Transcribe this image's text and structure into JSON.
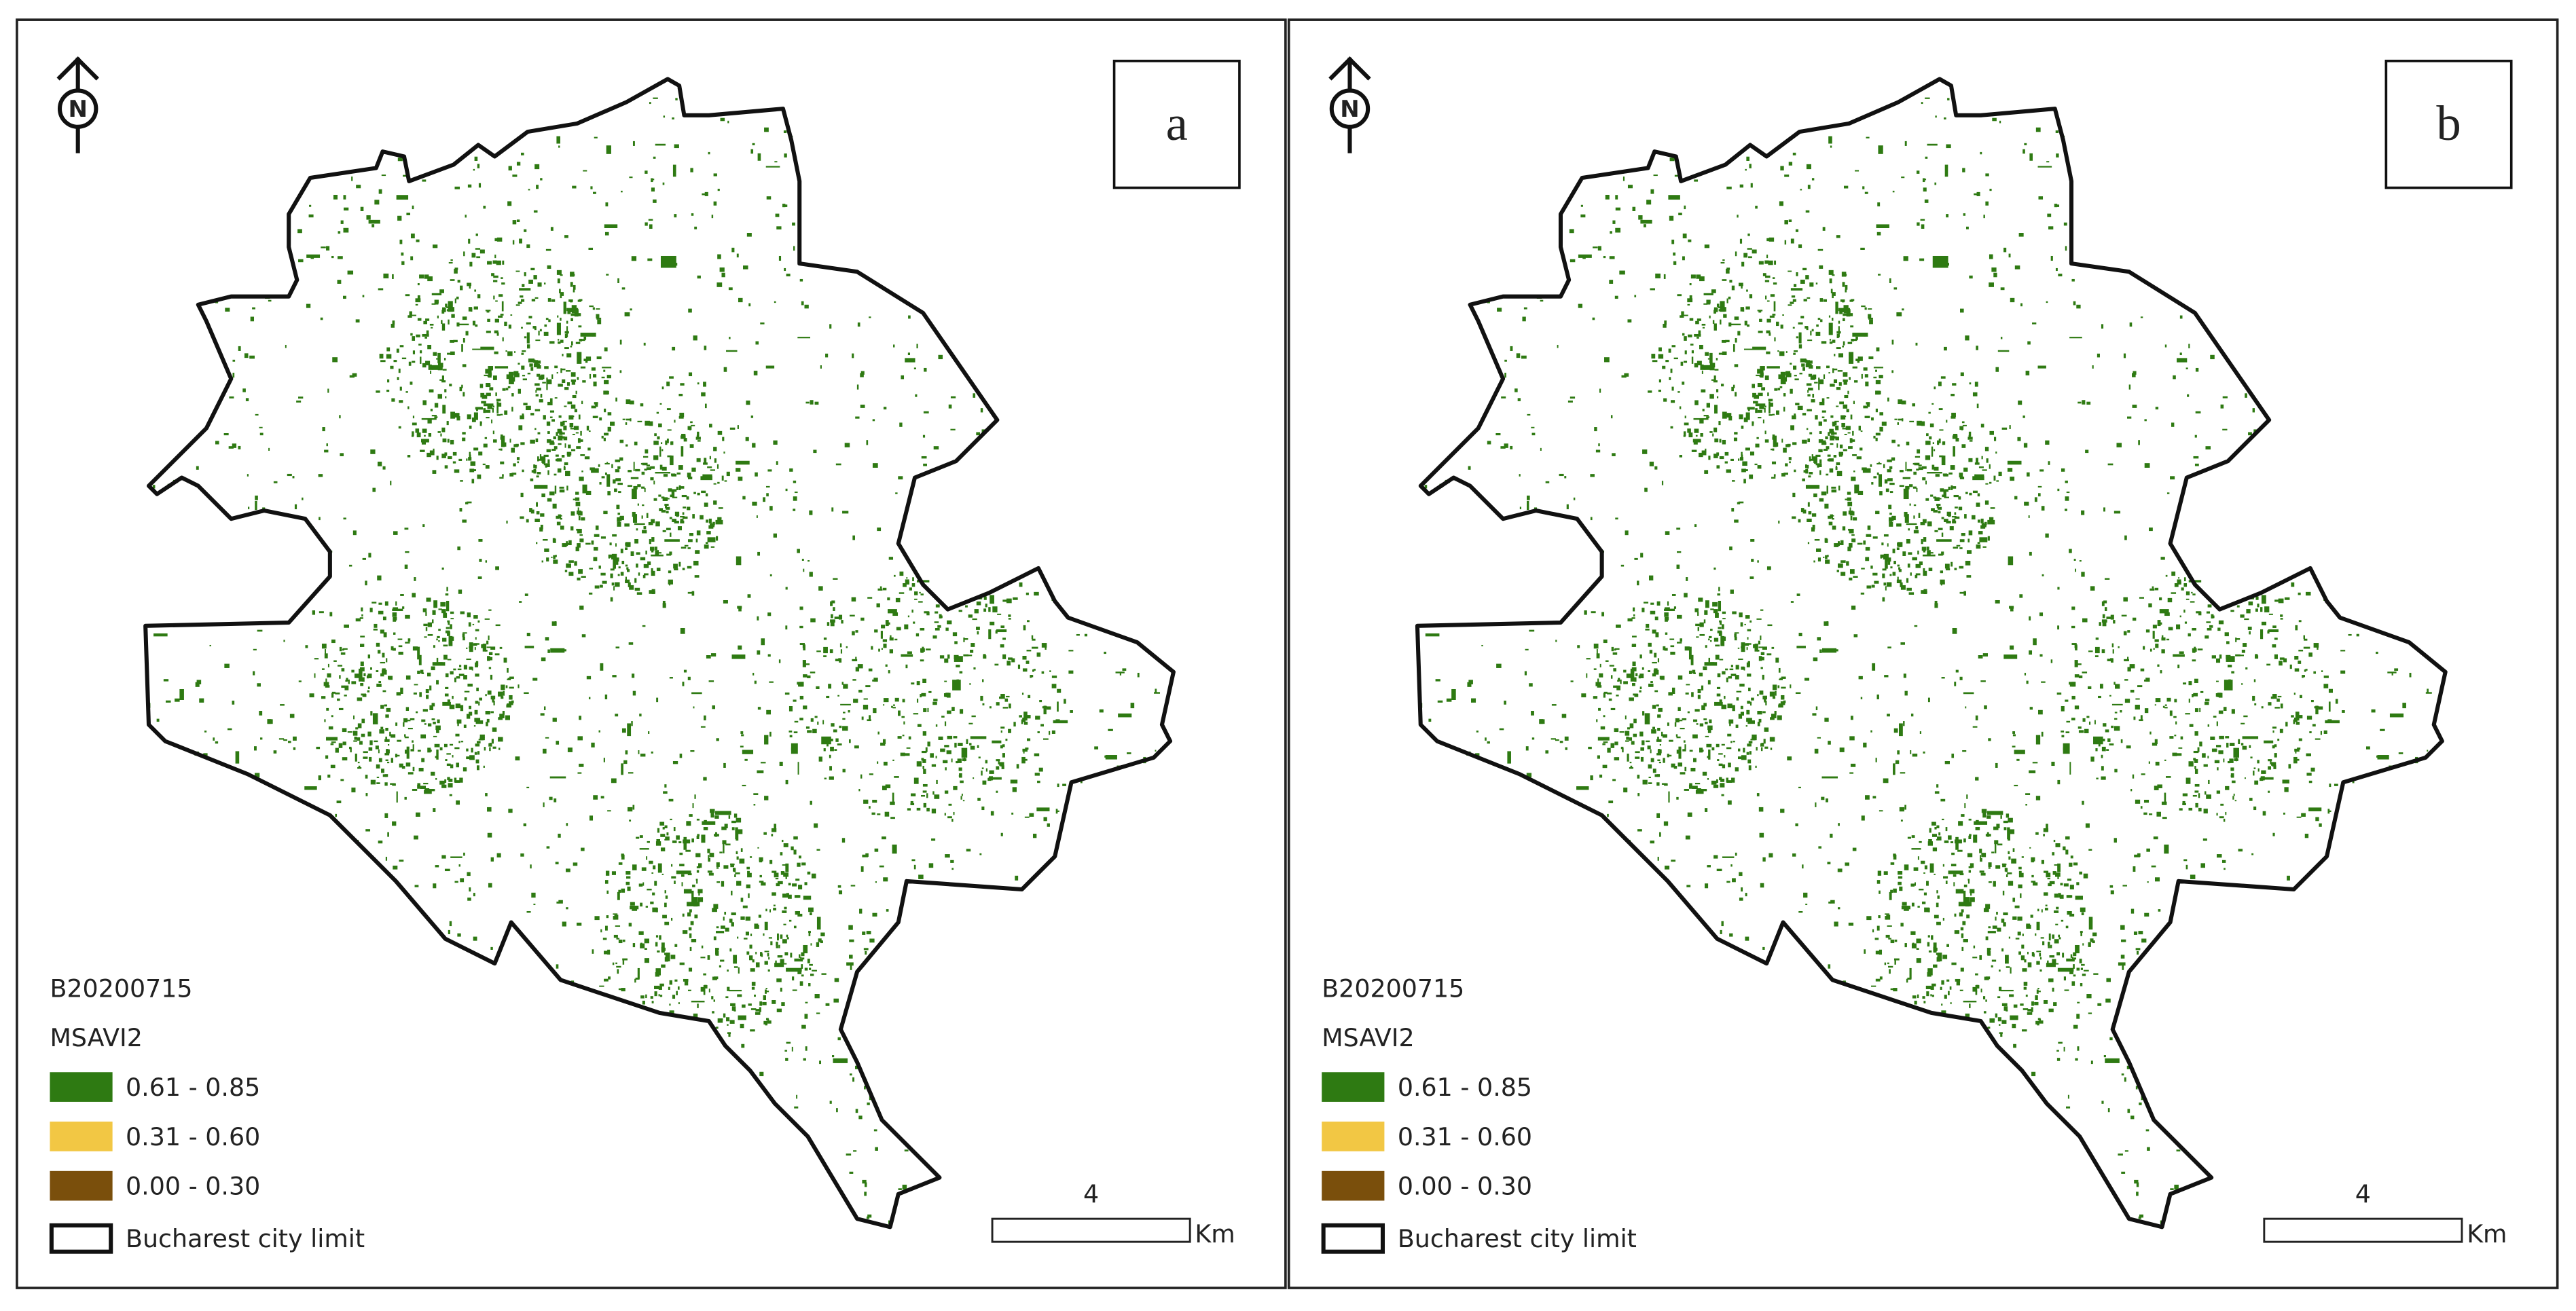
{
  "panels": [
    {
      "label": "a",
      "north": "N",
      "legend": {
        "title": "B20200715",
        "subtitle": "MSAVI2",
        "items": [
          {
            "label": "0.61 - 0.85",
            "color": "#2e7a12"
          },
          {
            "label": "0.31 - 0.60",
            "color": "#f2c744"
          },
          {
            "label": "0.00 - 0.30",
            "color": "#7a4f0c"
          }
        ],
        "boundary": "Bucharest city limit"
      },
      "scale": {
        "distance": "4",
        "unit": "Km"
      }
    },
    {
      "label": "b",
      "north": "N",
      "legend": {
        "title": "B20200715",
        "subtitle": "MSAVI2",
        "items": [
          {
            "label": "0.61 - 0.85",
            "color": "#2e7a12"
          },
          {
            "label": "0.31 - 0.60",
            "color": "#f2c744"
          },
          {
            "label": "0.00 - 0.30",
            "color": "#7a4f0c"
          }
        ],
        "boundary": "Bucharest city limit"
      },
      "scale": {
        "distance": "4",
        "unit": "Km"
      }
    }
  ]
}
